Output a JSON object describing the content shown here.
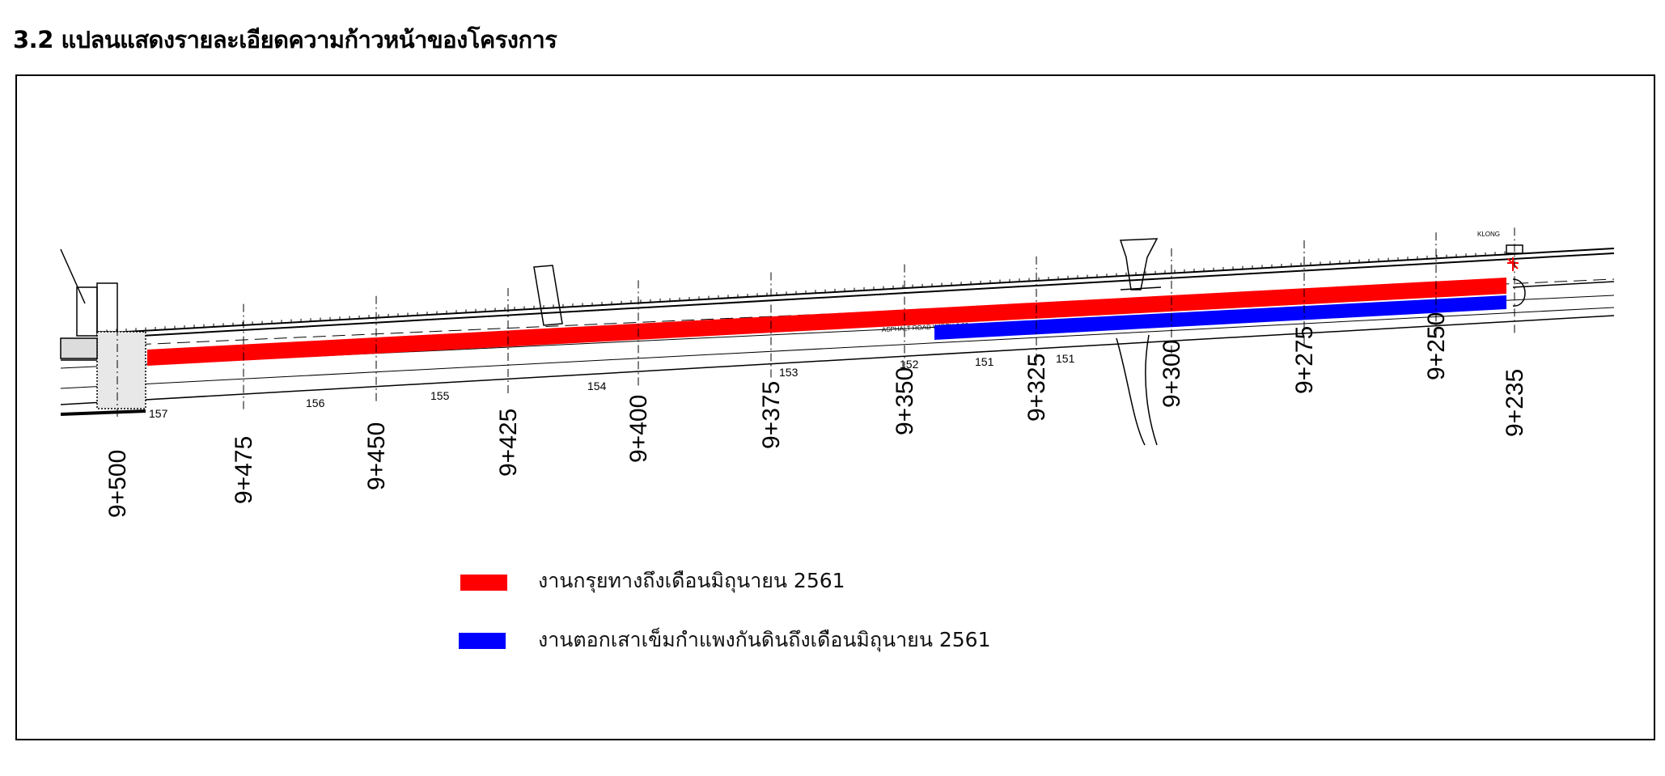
{
  "page": {
    "title": "3.2 แปลนแสดงรายละเอียดความก้าวหน้าของโครงการ"
  },
  "plan": {
    "stations": [
      "9+500",
      "9+475",
      "9+450",
      "9+425",
      "9+400",
      "9+375",
      "9+350",
      "9+325",
      "9+300",
      "9+275",
      "9+250",
      "9+235"
    ],
    "sections": [
      "157",
      "156",
      "155",
      "154",
      "153",
      "152",
      "151",
      "151"
    ],
    "cad_labels": {
      "klong": "KLONG",
      "road": "ASPHALT ROAD WIDTH 6.00"
    }
  },
  "legend": {
    "items": [
      {
        "label": "งานกรุยทางถึงเดือนมิถุนายน 2561",
        "color": "#ff0000"
      },
      {
        "label": "งานตอกเสาเข็มกำแพงกันดินถึงเดือนมิถุนายน 2561",
        "color": "#0000ff"
      }
    ]
  }
}
